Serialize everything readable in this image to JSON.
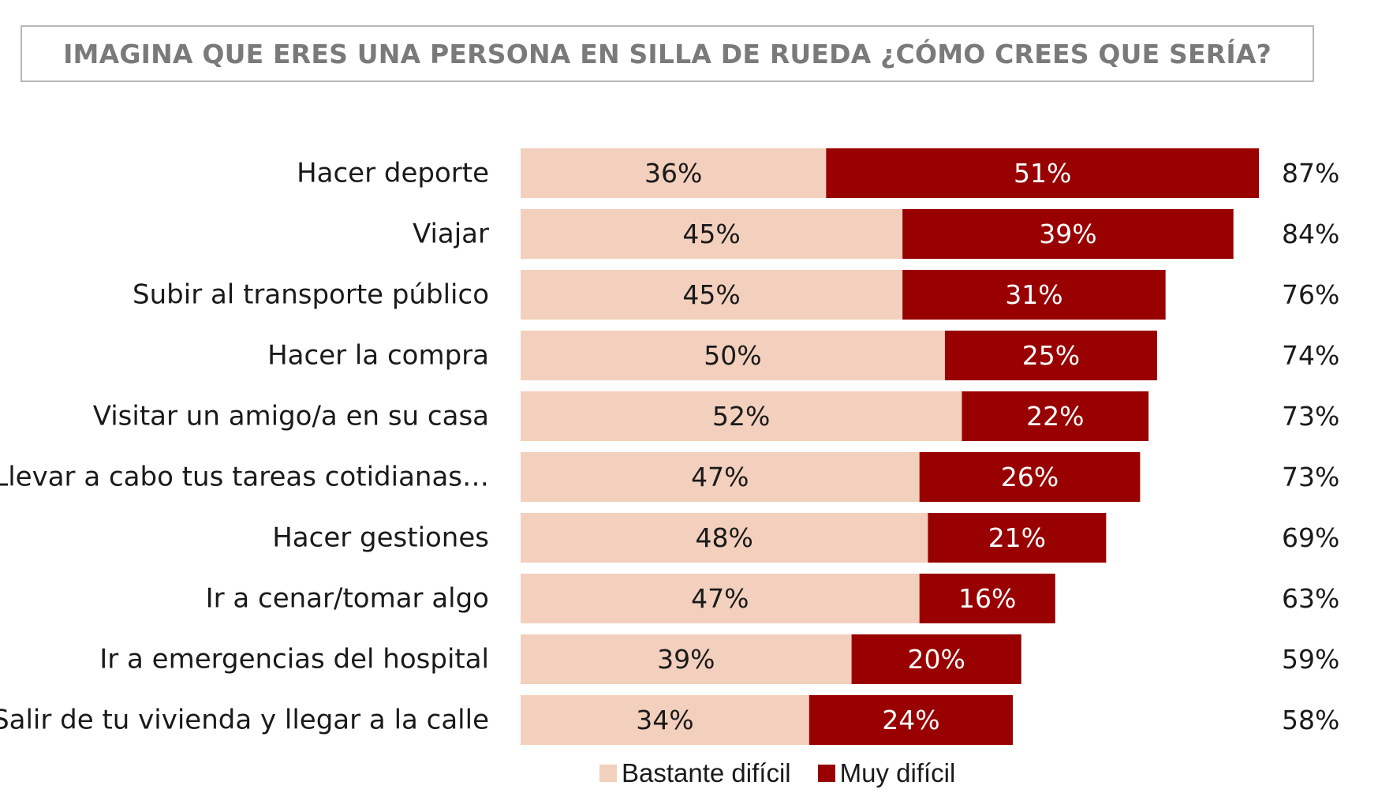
{
  "title": "IMAGINA QUE ERES UNA PERSONA EN SILLA DE RUEDA ¿CÓMO CREES QUE SERÍA?",
  "colors": {
    "bastante": "#f3d0bd",
    "muy": "#990000",
    "text_dark": "#1a1a1a",
    "text_light": "#ffffff"
  },
  "chart_data": {
    "type": "bar",
    "orientation": "horizontal",
    "stacked": true,
    "categories": [
      "Hacer deporte",
      "Viajar",
      "Subir al transporte público",
      "Hacer la compra",
      "Visitar un amigo/a en su casa",
      "Llevar a cabo tus tareas cotidianas…",
      "Hacer gestiones",
      "Ir a cenar/tomar algo",
      "Ir a emergencias del hospital",
      "Salir de tu vivienda y llegar a la calle"
    ],
    "series": [
      {
        "name": "Bastante difícil",
        "values": [
          36,
          45,
          45,
          50,
          52,
          47,
          48,
          47,
          39,
          34
        ],
        "labels": [
          "36%",
          "45%",
          "45%",
          "50%",
          "52%",
          "47%",
          "48%",
          "47%",
          "39%",
          "34%"
        ]
      },
      {
        "name": "Muy difícil",
        "values": [
          51,
          39,
          31,
          25,
          22,
          26,
          21,
          16,
          20,
          24
        ],
        "labels": [
          "51%",
          "39%",
          "31%",
          "25%",
          "22%",
          "26%",
          "21%",
          "16%",
          "20%",
          "24%"
        ]
      }
    ],
    "totals": [
      87,
      84,
      76,
      74,
      73,
      73,
      69,
      63,
      59,
      58
    ],
    "total_labels": [
      "87%",
      "84%",
      "76%",
      "74%",
      "73%",
      "73%",
      "69%",
      "63%",
      "59%",
      "58%"
    ],
    "xlim": [
      0,
      87
    ],
    "legend_position": "bottom",
    "grid": false
  }
}
